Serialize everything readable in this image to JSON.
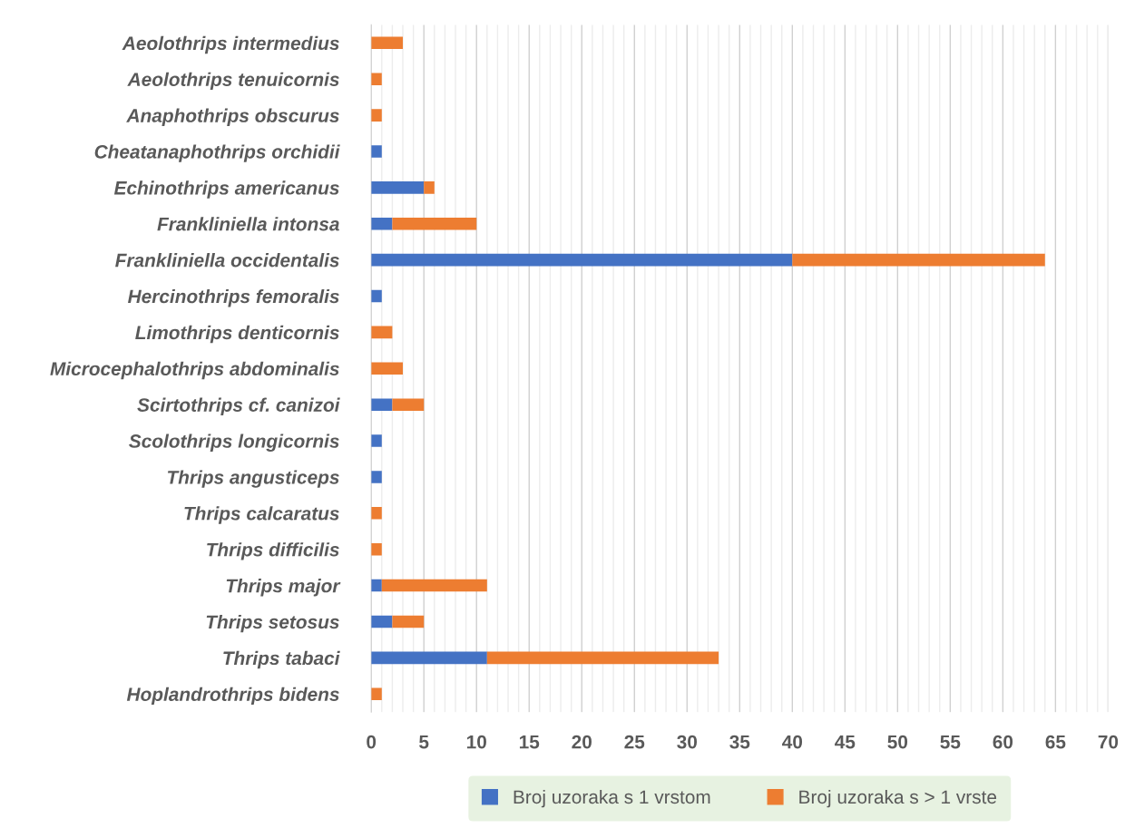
{
  "chart_data": {
    "type": "bar",
    "orientation": "horizontal",
    "stacked": true,
    "categories": [
      "Aeolothrips intermedius",
      "Aeolothrips tenuicornis",
      "Anaphothrips obscurus",
      "Cheatanaphothrips orchidii",
      "Echinothrips americanus",
      "Frankliniella intonsa",
      "Frankliniella occidentalis",
      "Hercinothrips femoralis",
      "Limothrips denticornis",
      "Microcephalothrips abdominalis",
      "Scirtothrips cf. canizoi",
      "Scolothrips longicornis",
      "Thrips angusticeps",
      "Thrips calcaratus",
      "Thrips difficilis",
      "Thrips major",
      "Thrips setosus",
      "Thrips tabaci",
      "Hoplandrothrips bidens"
    ],
    "series": [
      {
        "name": "Broj uzoraka s 1 vrstom",
        "color": "#4472c4",
        "values": [
          0,
          0,
          0,
          1,
          5,
          2,
          40,
          1,
          0,
          0,
          2,
          1,
          1,
          0,
          0,
          1,
          2,
          11,
          0
        ]
      },
      {
        "name": "Broj uzoraka s > 1 vrste",
        "color": "#ed7d31",
        "values": [
          3,
          1,
          1,
          0,
          1,
          8,
          24,
          0,
          2,
          3,
          3,
          0,
          0,
          1,
          1,
          10,
          3,
          22,
          1
        ]
      }
    ],
    "xlim": [
      0,
      70
    ],
    "xticks": [
      0,
      {
        "value": 1,
        "label": null
      },
      {
        "value": 2,
        "label": null
      },
      {
        "value": 3,
        "label": null
      },
      {
        "value": 4,
        "label": null
      },
      5,
      {
        "value": 6,
        "label": null
      },
      {
        "value": 7,
        "label": null
      },
      {
        "value": 8,
        "label": null
      },
      {
        "value": 9,
        "label": null
      },
      10,
      {
        "value": 11,
        "label": null
      },
      {
        "value": 12,
        "label": null
      },
      {
        "value": 13,
        "label": null
      },
      {
        "value": 14,
        "label": null
      },
      15,
      {
        "value": 16,
        "label": null
      },
      {
        "value": 17,
        "label": null
      },
      {
        "value": 18,
        "label": null
      },
      {
        "value": 19,
        "label": null
      },
      20,
      {
        "value": 21,
        "label": null
      },
      {
        "value": 22,
        "label": null
      },
      {
        "value": 23,
        "label": null
      },
      {
        "value": 24,
        "label": null
      },
      25,
      {
        "value": 26,
        "label": null
      },
      {
        "value": 27,
        "label": null
      },
      {
        "value": 28,
        "label": null
      },
      {
        "value": 29,
        "label": null
      },
      30,
      {
        "value": 31,
        "label": null
      },
      {
        "value": 32,
        "label": null
      },
      {
        "value": 33,
        "label": null
      },
      {
        "value": 34,
        "label": null
      },
      35,
      {
        "value": 36,
        "label": null
      },
      {
        "value": 37,
        "label": null
      },
      {
        "value": 38,
        "label": null
      },
      {
        "value": 39,
        "label": null
      },
      40,
      {
        "value": 41,
        "label": null
      },
      {
        "value": 42,
        "label": null
      },
      {
        "value": 43,
        "label": null
      },
      {
        "value": 44,
        "label": null
      },
      45,
      {
        "value": 46,
        "label": null
      },
      {
        "value": 47,
        "label": null
      },
      {
        "value": 48,
        "label": null
      },
      {
        "value": 49,
        "label": null
      },
      50,
      {
        "value": 51,
        "label": null
      },
      {
        "value": 52,
        "label": null
      },
      {
        "value": 53,
        "label": null
      },
      {
        "value": 54,
        "label": null
      },
      55,
      {
        "value": 56,
        "label": null
      },
      {
        "value": 57,
        "label": null
      },
      {
        "value": 58,
        "label": null
      },
      {
        "value": 59,
        "label": null
      },
      60,
      {
        "value": 61,
        "label": null
      },
      {
        "value": 62,
        "label": null
      },
      {
        "value": 63,
        "label": null
      },
      {
        "value": 64,
        "label": null
      },
      65,
      {
        "value": 66,
        "label": null
      },
      {
        "value": 67,
        "label": null
      },
      {
        "value": 68,
        "label": null
      },
      {
        "value": 69,
        "label": null
      },
      70
    ],
    "grid": "x",
    "legend": "bottom"
  }
}
